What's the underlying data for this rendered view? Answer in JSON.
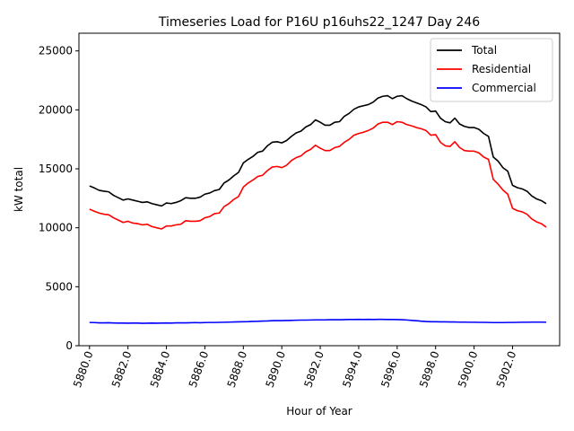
{
  "chart_data": {
    "type": "line",
    "title": "Timeseries Load for P16U p16uhs22_1247  Day 246",
    "xlabel": "Hour of Year",
    "ylabel": "kW total",
    "xlim": [
      5879.45,
      5904.45
    ],
    "ylim": [
      0,
      26500
    ],
    "x_start": 5880.0,
    "x_step": 0.25,
    "xticks": [
      5880,
      5882,
      5884,
      5886,
      5888,
      5890,
      5892,
      5894,
      5896,
      5898,
      5900,
      5902
    ],
    "xtick_labels": [
      "5880.0",
      "5882.0",
      "5884.0",
      "5886.0",
      "5888.0",
      "5890.0",
      "5892.0",
      "5894.0",
      "5896.0",
      "5898.0",
      "5900.0",
      "5902.0"
    ],
    "yticks": [
      0,
      5000,
      10000,
      15000,
      20000,
      25000
    ],
    "ytick_labels": [
      "0",
      "5000",
      "10000",
      "15000",
      "20000",
      "25000"
    ],
    "legend_position": "top-right",
    "series": [
      {
        "name": "Total",
        "color": "#000000",
        "values": [
          13550,
          13380,
          13180,
          13100,
          13050,
          12750,
          12550,
          12350,
          12450,
          12350,
          12250,
          12150,
          12200,
          12050,
          11950,
          11850,
          12100,
          12050,
          12150,
          12300,
          12550,
          12500,
          12500,
          12600,
          12850,
          12950,
          13150,
          13250,
          13800,
          14050,
          14400,
          14700,
          15500,
          15800,
          16050,
          16400,
          16500,
          16950,
          17250,
          17300,
          17200,
          17400,
          17750,
          18050,
          18200,
          18550,
          18750,
          19150,
          18950,
          18700,
          18700,
          18950,
          19000,
          19450,
          19700,
          20050,
          20250,
          20350,
          20450,
          20650,
          21000,
          21150,
          21200,
          20950,
          21150,
          21200,
          20950,
          20750,
          20600,
          20450,
          20250,
          19850,
          19900,
          19300,
          19000,
          18900,
          19300,
          18800,
          18600,
          18500,
          18500,
          18350,
          18000,
          17750,
          16000,
          15650,
          15100,
          14800,
          13600,
          13400,
          13300,
          13100,
          12700,
          12450,
          12300,
          12050
        ]
      },
      {
        "name": "Residential",
        "color": "#ff0000",
        "values": [
          11580,
          11400,
          11250,
          11150,
          11100,
          10850,
          10650,
          10450,
          10550,
          10400,
          10350,
          10250,
          10300,
          10100,
          10000,
          9900,
          10150,
          10150,
          10250,
          10300,
          10600,
          10550,
          10550,
          10600,
          10850,
          10950,
          11200,
          11250,
          11800,
          12050,
          12400,
          12650,
          13450,
          13800,
          14050,
          14350,
          14450,
          14850,
          15150,
          15200,
          15100,
          15300,
          15700,
          15950,
          16100,
          16450,
          16650,
          17000,
          16750,
          16550,
          16550,
          16800,
          16900,
          17250,
          17500,
          17850,
          18000,
          18100,
          18250,
          18450,
          18800,
          18950,
          18950,
          18750,
          19000,
          18950,
          18750,
          18650,
          18500,
          18400,
          18250,
          17850,
          17900,
          17250,
          16950,
          16900,
          17300,
          16800,
          16550,
          16500,
          16500,
          16350,
          16000,
          15800,
          14100,
          13700,
          13200,
          12850,
          11650,
          11450,
          11350,
          11150,
          10750,
          10500,
          10350,
          10050
        ]
      },
      {
        "name": "Commercial",
        "color": "#0000ff",
        "values": [
          1970,
          1960,
          1940,
          1940,
          1950,
          1930,
          1920,
          1920,
          1910,
          1920,
          1920,
          1900,
          1910,
          1920,
          1910,
          1920,
          1930,
          1920,
          1940,
          1940,
          1940,
          1950,
          1960,
          1950,
          1960,
          1970,
          1970,
          1980,
          1990,
          2000,
          2010,
          2020,
          2030,
          2040,
          2060,
          2070,
          2090,
          2100,
          2120,
          2130,
          2130,
          2140,
          2150,
          2160,
          2170,
          2170,
          2180,
          2190,
          2190,
          2190,
          2200,
          2200,
          2200,
          2210,
          2220,
          2220,
          2230,
          2220,
          2230,
          2220,
          2230,
          2230,
          2220,
          2220,
          2210,
          2200,
          2180,
          2150,
          2120,
          2080,
          2050,
          2030,
          2030,
          2020,
          2020,
          2010,
          2010,
          2000,
          2000,
          1990,
          1990,
          1980,
          1980,
          1970,
          1960,
          1960,
          1960,
          1970,
          1970,
          1980,
          1990,
          1990,
          2000,
          2000,
          2000,
          1990
        ]
      }
    ]
  }
}
